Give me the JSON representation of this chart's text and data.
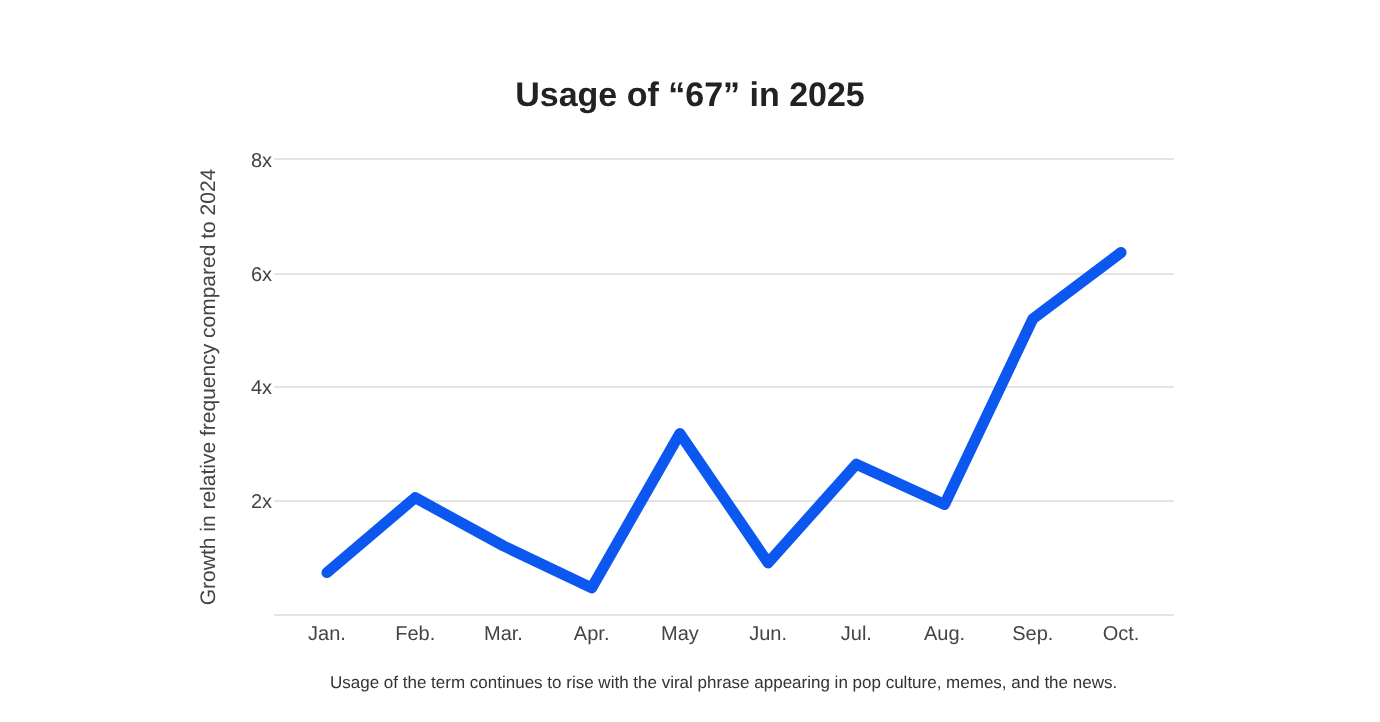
{
  "chart_data": {
    "type": "line",
    "title": "Usage of “67” in 2025",
    "ylabel": "Growth in relative frequency compared to 2024",
    "categories": [
      "Jan.",
      "Feb.",
      "Mar.",
      "Apr.",
      "May",
      "Jun.",
      "Jul.",
      "Aug.",
      "Sep.",
      "Oct."
    ],
    "series": [
      {
        "color": "#0b57f0",
        "values": [
          0.73,
          2.05,
          1.2,
          0.46,
          3.18,
          0.9,
          2.64,
          1.93,
          5.2,
          6.37
        ]
      }
    ],
    "ylim": [
      0,
      8
    ],
    "yticks": [
      {
        "value": 0,
        "label": null
      },
      {
        "value": 2,
        "label": "2x"
      },
      {
        "value": 4,
        "label": "4x"
      },
      {
        "value": 6,
        "label": "6x"
      },
      {
        "value": 8,
        "label": "8x"
      }
    ],
    "grid": "y",
    "legend": false,
    "marker": "none",
    "line_style": "solid",
    "annotations": [
      "Usage of the term continues to rise with the viral phrase appearing in pop culture, memes, and the news."
    ]
  }
}
